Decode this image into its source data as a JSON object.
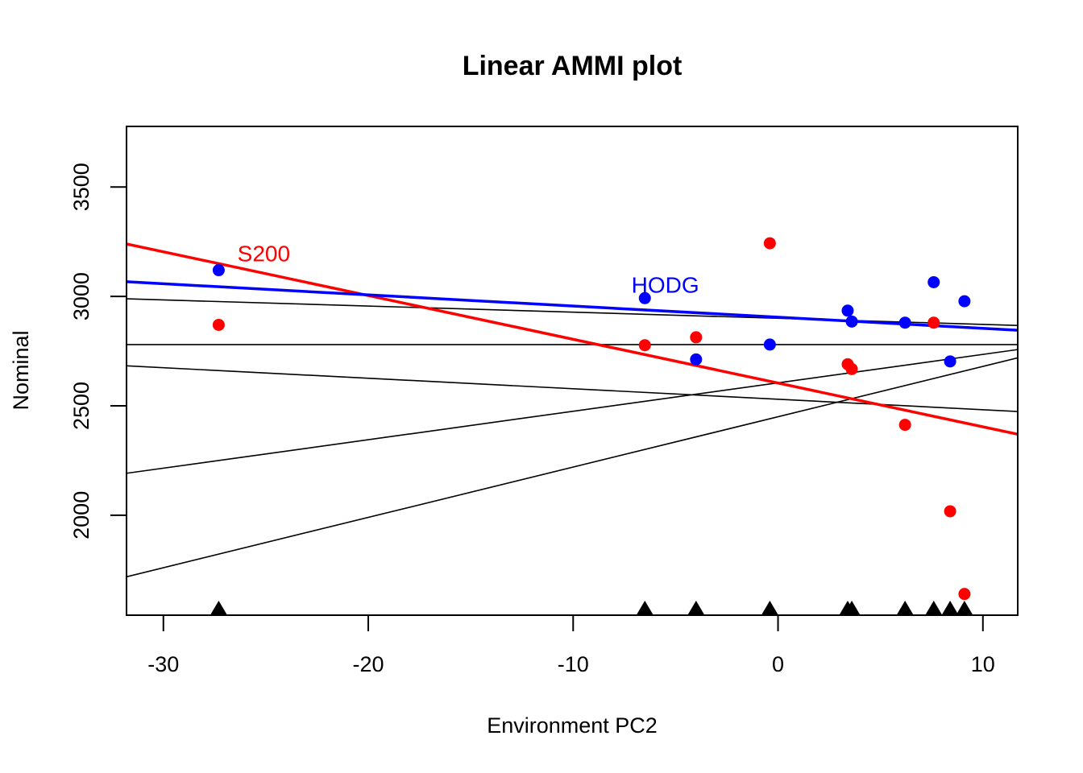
{
  "chart_data": {
    "type": "scatter",
    "title": "Linear AMMI plot",
    "xlabel": "Environment PC2",
    "ylabel": "Nominal",
    "xlim": [
      -31.8,
      11.7
    ],
    "ylim": [
      1543,
      3777
    ],
    "x_ticks": [
      -30,
      -20,
      -10,
      0,
      10
    ],
    "x_tick_labels": [
      "-30",
      "-20",
      "-10",
      "0",
      "10"
    ],
    "y_ticks": [
      2000,
      2500,
      3000,
      3500
    ],
    "y_tick_labels": [
      "2000",
      "2500",
      "3000",
      "3500"
    ],
    "grid": false,
    "environment_markers": [
      -27.3,
      -6.5,
      -4.0,
      -0.4,
      3.4,
      3.6,
      6.2,
      7.6,
      8.4,
      9.1
    ],
    "highlighted_series": [
      {
        "name": "S200",
        "color": "#ff0000",
        "points": [
          {
            "x": -27.3,
            "y": 2870
          },
          {
            "x": -6.5,
            "y": 2777
          },
          {
            "x": -4.0,
            "y": 2813
          },
          {
            "x": -0.4,
            "y": 3243
          },
          {
            "x": 3.4,
            "y": 2690
          },
          {
            "x": 3.6,
            "y": 2668
          },
          {
            "x": 6.2,
            "y": 2413
          },
          {
            "x": 7.6,
            "y": 2880
          },
          {
            "x": 8.4,
            "y": 2018
          },
          {
            "x": 9.1,
            "y": 1640
          }
        ],
        "line": {
          "intercept": 2604,
          "slope": -20.0
        },
        "label": {
          "text": "S200",
          "x": -25.1,
          "y": 3160
        }
      },
      {
        "name": "HODG",
        "color": "#0000ff",
        "points": [
          {
            "x": -27.3,
            "y": 3120
          },
          {
            "x": -6.5,
            "y": 2992
          },
          {
            "x": -4.0,
            "y": 2712
          },
          {
            "x": -0.4,
            "y": 2780
          },
          {
            "x": 3.4,
            "y": 2935
          },
          {
            "x": 3.6,
            "y": 2885
          },
          {
            "x": 6.2,
            "y": 2880
          },
          {
            "x": 7.6,
            "y": 3065
          },
          {
            "x": 8.4,
            "y": 2703
          },
          {
            "x": 9.1,
            "y": 2978
          }
        ],
        "line": {
          "intercept": 2905,
          "slope": -5.1
        },
        "label": {
          "text": "HODG",
          "x": -5.5,
          "y": 3017
        }
      }
    ],
    "other_lines": [
      {
        "intercept": 2900,
        "slope": -2.8
      },
      {
        "intercept": 2780,
        "slope": 0.0
      },
      {
        "intercept": 2530,
        "slope": -4.8
      },
      {
        "intercept": 2605,
        "slope": 13.0
      },
      {
        "intercept": 2450,
        "slope": 23.0
      }
    ]
  }
}
